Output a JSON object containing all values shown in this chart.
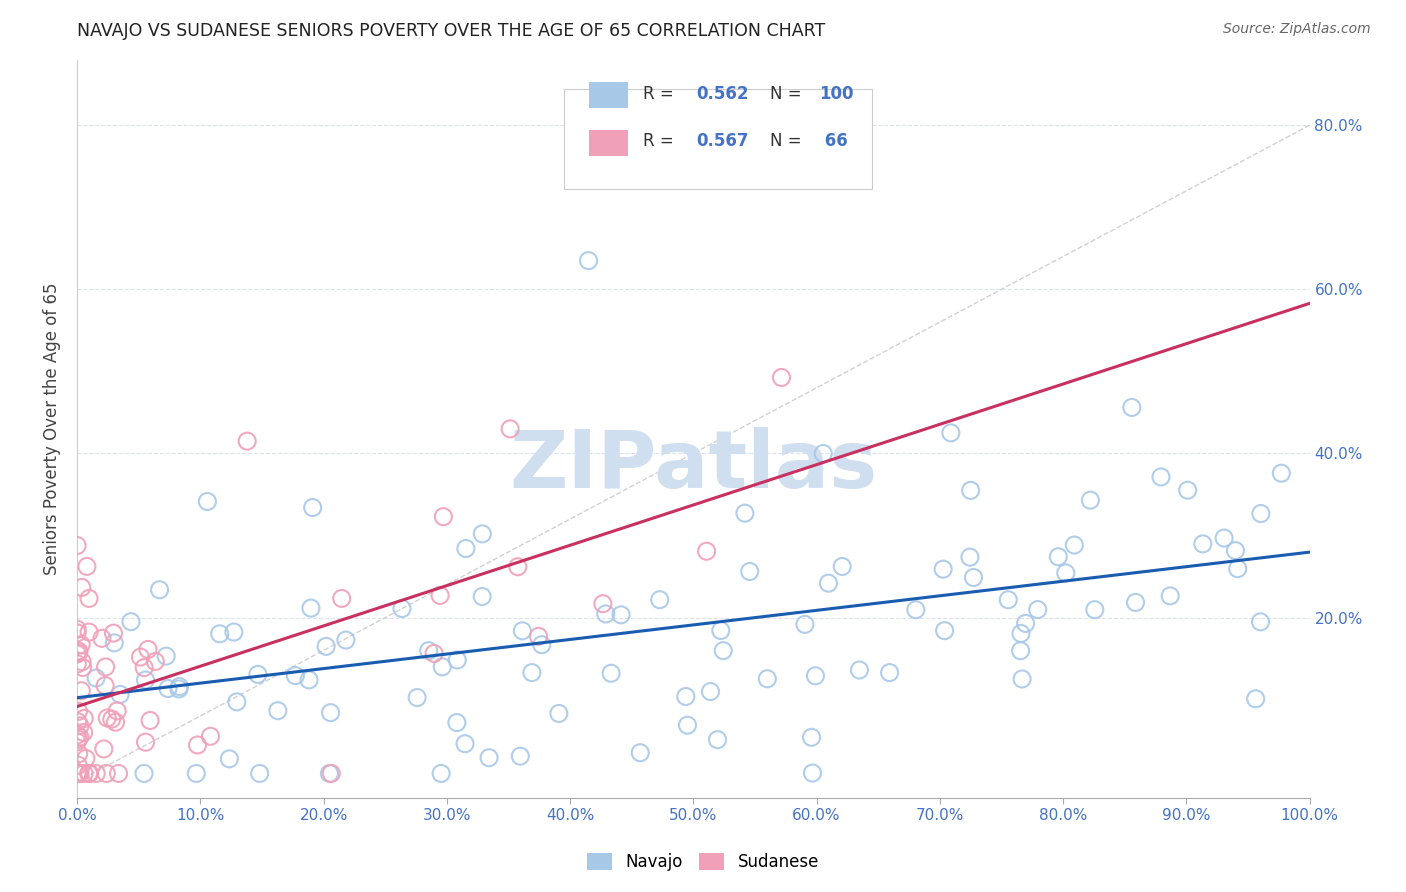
{
  "title": "NAVAJO VS SUDANESE SENIORS POVERTY OVER THE AGE OF 65 CORRELATION CHART",
  "source": "Source: ZipAtlas.com",
  "ylabel": "Seniors Poverty Over the Age of 65",
  "navajo_R": 0.562,
  "navajo_N": 100,
  "sudanese_R": 0.567,
  "sudanese_N": 66,
  "navajo_color": "#a8c8e8",
  "sudanese_color": "#f0a0b8",
  "navajo_line_color": "#1a5cb0",
  "sudanese_line_color": "#c83060",
  "ref_line_color": "#cccccc",
  "watermark_color": "#d0dff0",
  "background_color": "#ffffff",
  "grid_color": "#dde3ec",
  "tick_color": "#4472c4",
  "xlim": [
    0.0,
    1.0
  ],
  "ylim": [
    -0.02,
    0.88
  ],
  "xtick_vals": [
    0.0,
    0.1,
    0.2,
    0.3,
    0.4,
    0.5,
    0.6,
    0.7,
    0.8,
    0.9,
    1.0
  ],
  "ytick_vals": [
    0.0,
    0.2,
    0.4,
    0.6,
    0.8
  ],
  "ytick_labels": [
    "",
    "20.0%",
    "40.0%",
    "60.0%",
    "80.0%"
  ]
}
